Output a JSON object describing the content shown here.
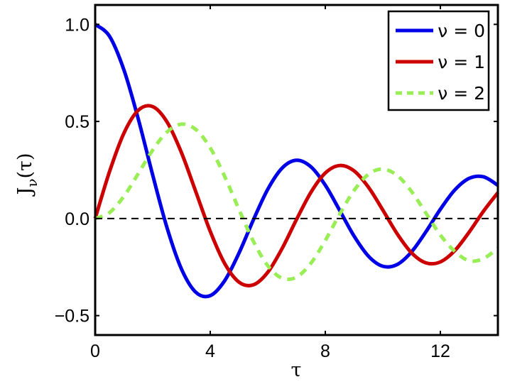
{
  "chart_data": {
    "type": "line",
    "title": "",
    "xlabel": "τ",
    "ylabel": "J",
    "ylabel_subscript": "ν",
    "ylabel_suffix": "(τ)",
    "xlim": [
      0,
      14
    ],
    "ylim": [
      -0.6,
      1.1
    ],
    "xticks": [
      0,
      4,
      8,
      12
    ],
    "xtick_labels": [
      "0",
      "4",
      "8",
      "12"
    ],
    "yticks": [
      -0.5,
      0.0,
      0.5,
      1.0
    ],
    "ytick_labels": [
      "−0.5",
      "0.0",
      "0.5",
      "1.0"
    ],
    "grid": false,
    "legend_position": "upper right",
    "reference_line": {
      "y": 0,
      "style": "dashed",
      "color": "#000000"
    },
    "x": [
      0,
      0.5,
      1,
      1.5,
      2,
      2.5,
      3,
      3.5,
      4,
      4.5,
      5,
      5.5,
      6,
      6.5,
      7,
      7.5,
      8,
      8.5,
      9,
      9.5,
      10,
      10.5,
      11,
      11.5,
      12,
      12.5,
      13,
      13.5,
      14
    ],
    "series": [
      {
        "name": "ν = 0",
        "color": "#0000e6",
        "style": "solid",
        "values": [
          1.0,
          0.9385,
          0.7652,
          0.5118,
          0.2239,
          -0.0484,
          -0.2601,
          -0.3801,
          -0.3971,
          -0.3205,
          -0.1776,
          -0.0068,
          0.1506,
          0.2601,
          0.3001,
          0.2663,
          0.1717,
          0.0419,
          -0.0903,
          -0.1939,
          -0.2459,
          -0.2366,
          -0.1712,
          -0.0677,
          0.0477,
          0.1469,
          0.2069,
          0.215,
          0.1711
        ]
      },
      {
        "name": "ν = 1",
        "color": "#cc0000",
        "style": "solid",
        "values": [
          0,
          0.2423,
          0.4401,
          0.5579,
          0.5767,
          0.4971,
          0.3391,
          0.1374,
          -0.066,
          -0.2311,
          -0.3276,
          -0.3414,
          -0.2767,
          -0.1538,
          -0.0047,
          0.1352,
          0.2346,
          0.2731,
          0.2453,
          0.1613,
          0.0435,
          -0.0789,
          -0.1768,
          -0.2284,
          -0.2234,
          -0.1655,
          -0.0703,
          0.038,
          0.1334
        ]
      },
      {
        "name": "ν = 2",
        "color": "#99ee55",
        "style": "dashed",
        "values": [
          0,
          0.0306,
          0.1149,
          0.2321,
          0.3528,
          0.4461,
          0.4861,
          0.4586,
          0.3641,
          0.2178,
          0.0466,
          -0.1173,
          -0.2429,
          -0.3074,
          -0.3014,
          -0.2303,
          -0.113,
          0.0223,
          0.1448,
          0.2278,
          0.2546,
          0.2217,
          0.139,
          0.0272,
          -0.0849,
          -0.1688,
          -0.2177,
          -0.2062,
          -0.152
        ]
      }
    ]
  }
}
